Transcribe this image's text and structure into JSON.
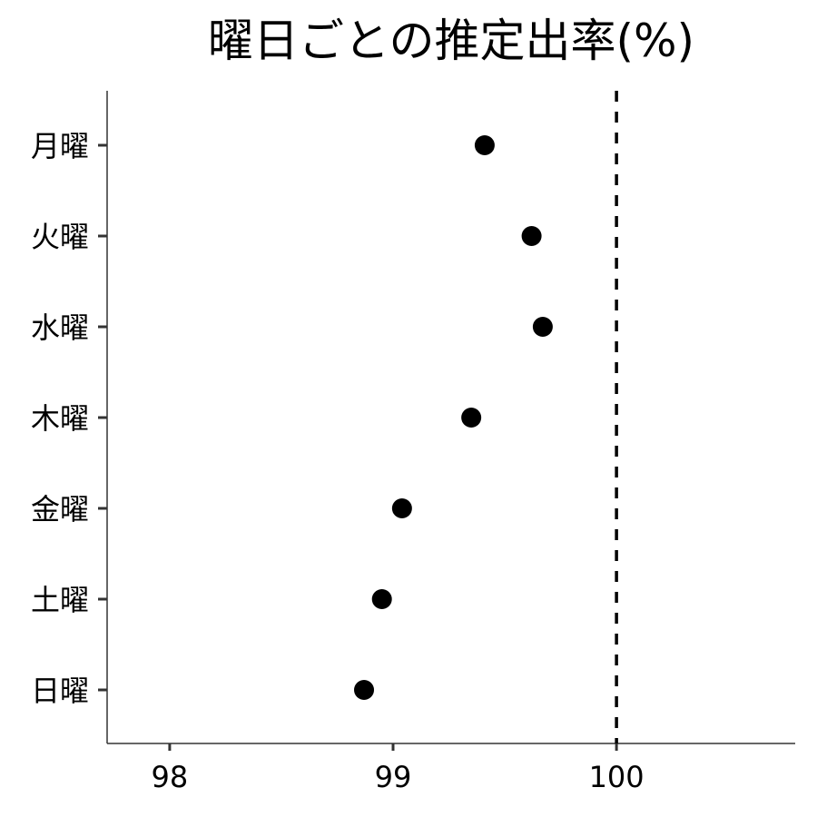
{
  "chart_data": {
    "type": "scatter",
    "title": "曜日ごとの推定出率(%)",
    "xlabel": "",
    "ylabel": "",
    "categories": [
      "月曜",
      "火曜",
      "水曜",
      "木曜",
      "金曜",
      "土曜",
      "日曜"
    ],
    "values": [
      99.41,
      99.62,
      99.67,
      99.35,
      99.04,
      98.95,
      98.87
    ],
    "xlim": [
      97.72,
      100.8
    ],
    "x_ticks": [
      98,
      99,
      100
    ],
    "x_tick_labels": [
      "98",
      "99",
      "100"
    ],
    "reference_line": {
      "x": 100,
      "style": "dashed"
    },
    "grid": false,
    "legend": "none",
    "colors": {
      "point": "#000000",
      "axis": "#333333",
      "reference": "#000000"
    }
  }
}
